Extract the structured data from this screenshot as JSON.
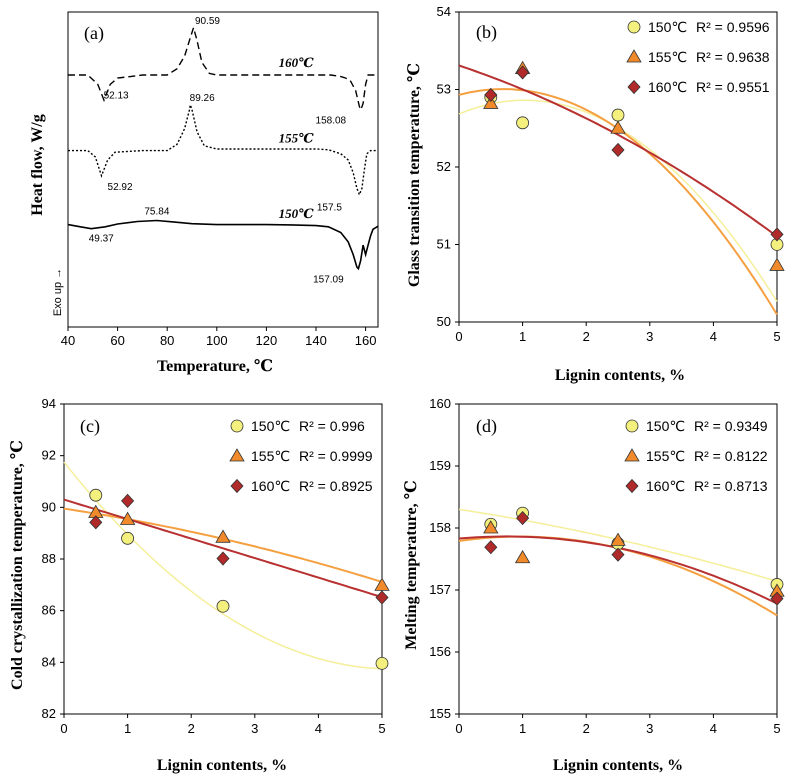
{
  "chart_data": [
    {
      "type": "line",
      "panel": "(a)",
      "xlabel": "Temperature, ℃",
      "ylabel": "Heat flow, W/g",
      "exo_label": "Exo up →",
      "xlim": [
        40,
        165
      ],
      "xticks": [
        40,
        60,
        80,
        100,
        120,
        140,
        160
      ],
      "series": [
        {
          "name": "160℃",
          "style": "dashed",
          "baseline": 0.8,
          "x": [
            40,
            48,
            52,
            54.5,
            57,
            60,
            70,
            80,
            84,
            87,
            89,
            90.6,
            92,
            94,
            97,
            100,
            110,
            120,
            130,
            140,
            146,
            150,
            152,
            154,
            156,
            157.5,
            158.1,
            159,
            160,
            161,
            162,
            163,
            165
          ],
          "y": [
            0.8,
            0.8,
            0.77,
            0.72,
            0.77,
            0.79,
            0.8,
            0.8,
            0.82,
            0.86,
            0.91,
            0.95,
            0.91,
            0.84,
            0.805,
            0.8,
            0.8,
            0.8,
            0.8,
            0.8,
            0.8,
            0.795,
            0.79,
            0.78,
            0.75,
            0.7,
            0.69,
            0.71,
            0.77,
            0.8,
            0.8,
            0.8,
            0.8
          ],
          "peaks": [
            {
              "label": "52.13",
              "x": 52.13,
              "kind": "min"
            },
            {
              "label": "90.59",
              "x": 90.59,
              "kind": "max"
            },
            {
              "label": "158.08",
              "x": 158.08,
              "kind": "min"
            }
          ]
        },
        {
          "name": "155℃",
          "style": "dotted",
          "baseline": 0.56,
          "x": [
            40,
            48,
            51,
            53.5,
            56,
            59,
            70,
            80,
            84,
            87,
            89,
            89.3,
            90,
            92,
            95,
            100,
            110,
            120,
            130,
            140,
            145,
            150,
            153,
            155,
            156.5,
            157.5,
            158.5,
            159.5,
            160.5,
            162,
            165
          ],
          "y": [
            0.56,
            0.56,
            0.54,
            0.48,
            0.53,
            0.555,
            0.56,
            0.56,
            0.58,
            0.63,
            0.69,
            0.705,
            0.69,
            0.62,
            0.575,
            0.565,
            0.565,
            0.565,
            0.565,
            0.565,
            0.563,
            0.55,
            0.53,
            0.49,
            0.44,
            0.42,
            0.44,
            0.5,
            0.55,
            0.56,
            0.56
          ],
          "peaks": [
            {
              "label": "52.92",
              "x": 52.92,
              "kind": "min"
            },
            {
              "label": "89.26",
              "x": 89.26,
              "kind": "max"
            },
            {
              "label": "157.5",
              "x": 157.5,
              "kind": "min"
            }
          ]
        },
        {
          "name": "150℃",
          "style": "solid",
          "baseline": 0.32,
          "x": [
            40,
            45,
            49.4,
            55,
            60,
            68,
            75.8,
            83,
            90,
            100,
            110,
            120,
            130,
            140,
            145,
            150,
            153,
            155,
            156.5,
            157.1,
            158,
            159,
            160,
            161,
            162,
            163,
            165
          ],
          "y": [
            0.325,
            0.318,
            0.312,
            0.318,
            0.327,
            0.335,
            0.338,
            0.333,
            0.328,
            0.325,
            0.325,
            0.325,
            0.324,
            0.322,
            0.318,
            0.3,
            0.27,
            0.23,
            0.19,
            0.185,
            0.21,
            0.26,
            0.23,
            0.26,
            0.29,
            0.31,
            0.32
          ],
          "peaks": [
            {
              "label": "49.37",
              "x": 49.37,
              "kind": "min"
            },
            {
              "label": "75.84",
              "x": 75.84,
              "kind": "max"
            },
            {
              "label": "157.09",
              "x": 157.09,
              "kind": "min"
            }
          ]
        }
      ]
    },
    {
      "type": "scatter",
      "panel": "(b)",
      "xlabel": "Lignin  contents, %",
      "ylabel": "Glass transition temperature, ℃",
      "xlim": [
        0,
        5
      ],
      "ylim": [
        50,
        54
      ],
      "xticks": [
        0,
        1,
        2,
        3,
        4,
        5
      ],
      "yticks": [
        50,
        51,
        52,
        53,
        54
      ],
      "legend_position": "top-right",
      "series": [
        {
          "name": "150℃",
          "r2": "R² = 0.9596",
          "marker": "circle",
          "color": "#f3f07d",
          "fit": "#f5ef9a",
          "x": [
            0.5,
            1,
            2.5,
            5
          ],
          "y": [
            52.9,
            52.57,
            52.67,
            51.0
          ],
          "poly": [
            -0.165,
            0.341,
            52.685
          ]
        },
        {
          "name": "155℃",
          "r2": "R² = 0.9638",
          "marker": "triangle",
          "color": "#f08a2a",
          "fit": "#f5a040",
          "x": [
            0.5,
            1,
            2.5,
            5
          ],
          "y": [
            52.82,
            53.27,
            52.5,
            50.73
          ],
          "poly": [
            -0.157,
            0.218,
            52.93
          ]
        },
        {
          "name": "160℃",
          "r2": "R² = 0.9551",
          "marker": "diamond",
          "color": "#b02a2a",
          "fit": "#b83030",
          "x": [
            0.5,
            1,
            2.5,
            5
          ],
          "y": [
            52.93,
            53.22,
            52.22,
            51.13
          ],
          "poly": [
            -0.0332,
            -0.275,
            53.31
          ]
        }
      ]
    },
    {
      "type": "scatter",
      "panel": "(c)",
      "xlabel": "Lignin  contents, %",
      "ylabel": "Cold crystallization temperature, ℃",
      "xlim": [
        0,
        5
      ],
      "ylim": [
        82,
        94
      ],
      "xticks": [
        0,
        1,
        2,
        3,
        4,
        5
      ],
      "yticks": [
        82,
        84,
        86,
        88,
        90,
        92,
        94
      ],
      "legend_position": "top-right",
      "series": [
        {
          "name": "150℃",
          "r2": "R² = 0.996",
          "marker": "circle",
          "color": "#f3f07d",
          "fit": "#f5ef9a",
          "x": [
            0.5,
            1,
            2.5,
            5
          ],
          "y": [
            90.47,
            88.8,
            86.17,
            83.96
          ],
          "poly": [
            0.3,
            -3.1,
            91.75
          ]
        },
        {
          "name": "155℃",
          "r2": "R² = 0.9999",
          "marker": "triangle",
          "color": "#f08a2a",
          "fit": "#f5a040",
          "x": [
            0.5,
            1,
            2.5,
            5
          ],
          "y": [
            89.8,
            89.53,
            88.84,
            86.98
          ],
          "poly": [
            -0.04,
            -0.368,
            89.95
          ]
        },
        {
          "name": "160℃",
          "r2": "R² = 0.8925",
          "marker": "diamond",
          "color": "#b02a2a",
          "fit": "#b83030",
          "x": [
            0.5,
            1,
            2.5,
            5
          ],
          "y": [
            89.42,
            90.25,
            88.02,
            86.51
          ],
          "poly": [
            0.0,
            -0.755,
            90.3
          ]
        }
      ]
    },
    {
      "type": "scatter",
      "panel": "(d)",
      "xlabel": "Lignin  contents, %",
      "ylabel": "Melting temperature, ℃",
      "xlim": [
        0,
        5
      ],
      "ylim": [
        155,
        160
      ],
      "xticks": [
        0,
        1,
        2,
        3,
        4,
        5
      ],
      "yticks": [
        155,
        156,
        157,
        158,
        159,
        160
      ],
      "legend_position": "top-right",
      "series": [
        {
          "name": "150℃",
          "r2": "R² = 0.9349",
          "marker": "circle",
          "color": "#f3f07d",
          "fit": "#f5ef9a",
          "x": [
            0.5,
            1,
            2.5,
            5
          ],
          "y": [
            158.06,
            158.24,
            157.75,
            157.09
          ],
          "poly": [
            -0.015,
            -0.157,
            158.3
          ]
        },
        {
          "name": "155℃",
          "r2": "R² = 0.8122",
          "marker": "triangle",
          "color": "#f08a2a",
          "fit": "#f5a040",
          "x": [
            0.5,
            1,
            2.5,
            5
          ],
          "y": [
            158.0,
            157.52,
            157.8,
            156.98
          ],
          "poly": [
            -0.078,
            0.15,
            157.79
          ]
        },
        {
          "name": "160℃",
          "r2": "R² = 0.8713",
          "marker": "diamond",
          "color": "#b02a2a",
          "fit": "#b83030",
          "x": [
            0.5,
            1,
            2.5,
            5
          ],
          "y": [
            157.69,
            158.16,
            157.57,
            156.86
          ],
          "poly": [
            -0.06,
            0.09,
            157.83
          ]
        }
      ]
    }
  ]
}
